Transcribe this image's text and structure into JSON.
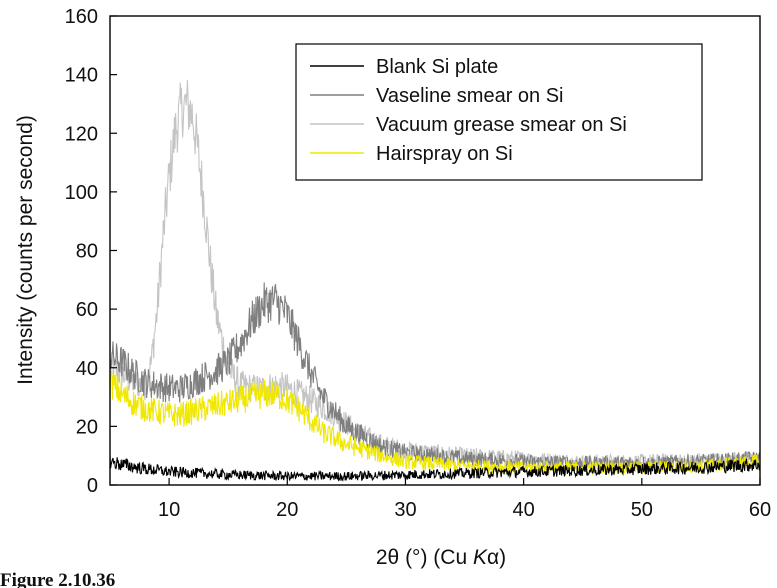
{
  "chart_data": {
    "type": "line",
    "title": "",
    "xlabel_prefix": "2θ (°) (Cu ",
    "xlabel_italic": "K",
    "xlabel_suffix": "α)",
    "ylabel": "Intensity (counts per second)",
    "xlim": [
      5,
      60
    ],
    "ylim": [
      0,
      160
    ],
    "xticks": [
      10,
      20,
      30,
      40,
      50,
      60
    ],
    "yticks": [
      0,
      20,
      40,
      60,
      80,
      100,
      120,
      140,
      160
    ],
    "grid": false,
    "legend_position": "top-right",
    "series": [
      {
        "name": "Blank Si plate",
        "color": "#000000",
        "x": [
          5,
          6,
          8,
          10,
          15,
          20,
          25,
          30,
          35,
          40,
          45,
          50,
          55,
          60
        ],
        "y": [
          8,
          7,
          5.5,
          4.5,
          3.5,
          3,
          3,
          3.5,
          4,
          4.5,
          5,
          5.5,
          6,
          7
        ]
      },
      {
        "name": "Vaseline smear on Si",
        "color": "#7f7f7f",
        "x": [
          5,
          6,
          7,
          8,
          9,
          10,
          11,
          12,
          13,
          14,
          15,
          16,
          17,
          18,
          19,
          20,
          21,
          22,
          23,
          25,
          28,
          30,
          35,
          40,
          45,
          50,
          55,
          60
        ],
        "y": [
          44,
          42,
          38,
          35,
          34,
          33,
          33,
          35,
          37,
          39,
          42,
          48,
          56,
          62,
          63,
          58,
          48,
          38,
          30,
          20,
          13,
          11,
          9,
          8,
          7.5,
          7.5,
          8,
          9
        ]
      },
      {
        "name": "Vacuum grease smear on Si",
        "color": "#c4c4c4",
        "x": [
          5,
          6,
          7,
          8,
          8.5,
          9,
          9.5,
          10,
          10.5,
          11,
          11.5,
          12,
          12.5,
          13,
          13.5,
          14,
          15,
          16,
          17,
          18,
          19,
          20,
          22,
          24,
          26,
          28,
          30,
          35,
          40,
          45,
          50,
          55,
          60
        ],
        "y": [
          40,
          38,
          35,
          34,
          42,
          60,
          85,
          105,
          120,
          128,
          130,
          126,
          112,
          95,
          75,
          58,
          40,
          34,
          33,
          33,
          34,
          33,
          29,
          24,
          18,
          14,
          12,
          10,
          9,
          8,
          8,
          8.5,
          9
        ]
      },
      {
        "name": "Hairspray on Si",
        "color": "#f0e800",
        "x": [
          5,
          6,
          7,
          8,
          9,
          10,
          11,
          12,
          13,
          14,
          15,
          16,
          17,
          18,
          19,
          20,
          21,
          22,
          23,
          25,
          28,
          30,
          35,
          40,
          45,
          50,
          55,
          60
        ],
        "y": [
          35,
          31,
          28,
          26,
          25,
          24,
          24,
          25,
          26,
          27,
          28,
          29,
          30,
          31,
          31,
          29,
          26,
          22,
          18,
          14,
          10,
          8,
          6.5,
          6,
          6,
          6,
          6.5,
          8
        ]
      }
    ]
  },
  "caption": {
    "text": "Figure 2.10.36"
  }
}
